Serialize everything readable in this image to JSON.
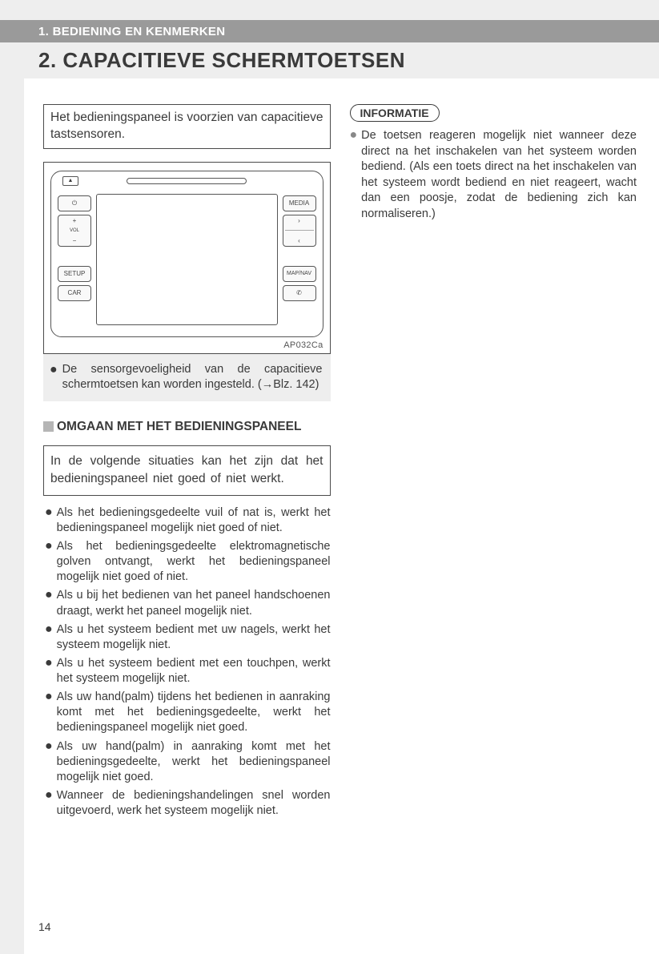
{
  "header": {
    "chapter": "1. BEDIENING EN KENMERKEN",
    "title": "2. CAPACITIEVE SCHERMTOETSEN"
  },
  "leftColumn": {
    "introBox": "Het bedieningspaneel is voorzien van capacitieve tastsensoren.",
    "diagram": {
      "code": "AP032Ca",
      "buttons": {
        "eject": "▲",
        "power": "⏻",
        "volPlus": "+",
        "volLabel": "VOL",
        "volMinus": "−",
        "setup": "SETUP",
        "car": "CAR",
        "media": "MEDIA",
        "seekNext": "›",
        "seekPrev": "‹",
        "map": "MAP/NAV",
        "phone": "✆"
      }
    },
    "greyNote": "De sensorgevoeligheid van de capaci­tieve schermtoetsen kan worden inge­steld. (→Blz. 142)",
    "subheading": "OMGAAN MET HET BEDIENINGS­PANEEL",
    "situationBox": "In de volgende situaties kan het zijn dat het bedieningspaneel niet goed of niet werkt.",
    "bullets": [
      "Als het bedieningsgedeelte vuil of nat is, werkt het bedieningspaneel mogelijk niet goed of niet.",
      "Als het bedieningsgedeelte elektromagne­tische golven ontvangt, werkt het bedie­ningspaneel mogelijk niet goed of niet.",
      "Als u bij het bedienen van het paneel handschoenen draagt, werkt het paneel mogelijk niet.",
      "Als u het systeem bedient met uw nagels, werkt het systeem mogelijk niet.",
      "Als u het systeem bedient met een touch­pen, werkt het systeem mogelijk niet.",
      "Als uw hand(palm) tijdens het bedienen in aanraking komt met het bedieningsge­deelte, werkt het bedieningspaneel moge­lijk niet goed.",
      "Als uw hand(palm) in aanraking komt met het bedieningsgedeelte, werkt het bedie­ningspaneel mogelijk niet goed.",
      "Wanneer de bedieningshandelingen snel worden uitgevoerd, werk het systeem mogelijk niet."
    ]
  },
  "rightColumn": {
    "infoLabel": "INFORMATIE",
    "infoBullet": "De toetsen reageren mogelijk niet wan­neer deze direct na het inschakelen van het systeem worden bediend. (Als een toets direct na het inschakelen van het systeem wordt bediend en niet reageert, wacht dan een poosje, zodat de bedie­ning zich kan normaliseren.)"
  },
  "pageNumber": "14"
}
